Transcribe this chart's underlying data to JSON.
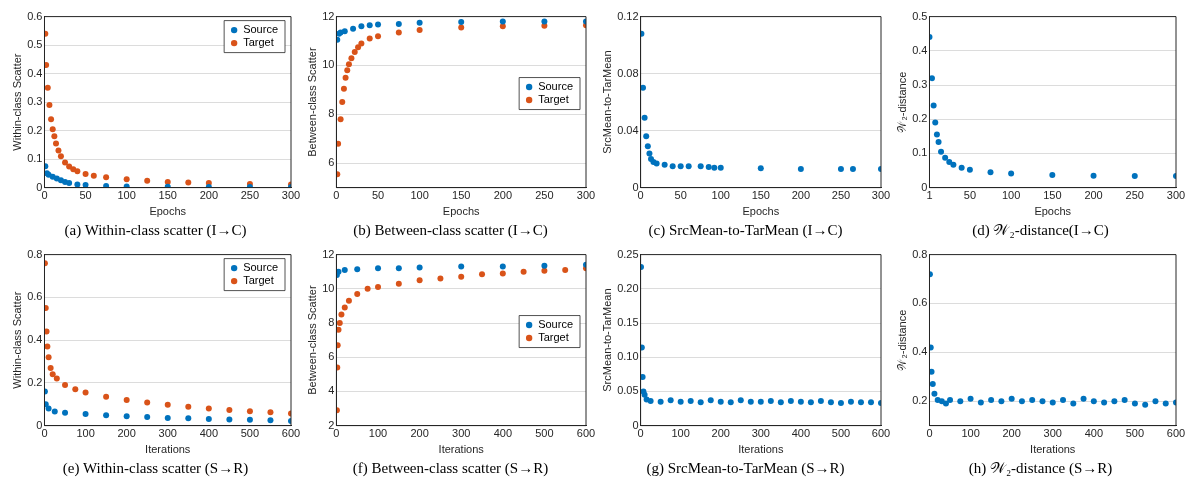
{
  "chart_data": [
    {
      "type": "scatter",
      "xlabel": "Epochs",
      "ylabel": "Within-class Scatter",
      "annotations": [
        "(a) Within-class scatter (I→C)"
      ],
      "xlim": [
        0,
        300
      ],
      "xticks": [
        0,
        50,
        100,
        150,
        200,
        250,
        300
      ],
      "ylim": [
        0,
        0.6
      ],
      "yticks": [
        0,
        0.1,
        0.2,
        0.3,
        0.4,
        0.5,
        0.6
      ],
      "grid": "y",
      "legend": "top right",
      "marker": "circle",
      "series": [
        {
          "name": "Source",
          "color": "#0072bd",
          "x": [
            1,
            3,
            5,
            10,
            15,
            20,
            25,
            30,
            40,
            50,
            75,
            100,
            150,
            200,
            250,
            300
          ],
          "values": [
            0.075,
            0.05,
            0.045,
            0.038,
            0.032,
            0.026,
            0.02,
            0.016,
            0.011,
            0.009,
            0.006,
            0.004,
            0.003,
            0.002,
            0.002,
            0.002
          ]
        },
        {
          "name": "Target",
          "color": "#d95319",
          "x": [
            1,
            2,
            4,
            6,
            8,
            10,
            12,
            14,
            17,
            20,
            25,
            30,
            35,
            40,
            50,
            60,
            75,
            100,
            125,
            150,
            175,
            200,
            250,
            300
          ],
          "values": [
            0.54,
            0.43,
            0.35,
            0.29,
            0.24,
            0.205,
            0.18,
            0.155,
            0.13,
            0.11,
            0.088,
            0.074,
            0.064,
            0.057,
            0.048,
            0.042,
            0.036,
            0.029,
            0.024,
            0.02,
            0.018,
            0.016,
            0.013,
            0.011
          ]
        }
      ]
    },
    {
      "type": "scatter",
      "xlabel": "Epochs",
      "ylabel": "Between-class Scatter",
      "annotations": [
        "(b) Between-class scatter (I→C)"
      ],
      "xlim": [
        0,
        300
      ],
      "xticks": [
        0,
        50,
        100,
        150,
        200,
        250,
        300
      ],
      "ylim": [
        5,
        12
      ],
      "yticks": [
        6,
        8,
        10,
        12
      ],
      "grid": "y",
      "legend": "right",
      "marker": "circle",
      "series": [
        {
          "name": "Source",
          "color": "#0072bd",
          "x": [
            1,
            3,
            5,
            10,
            20,
            30,
            40,
            50,
            75,
            100,
            150,
            200,
            250,
            300
          ],
          "values": [
            11.05,
            11.3,
            11.35,
            11.4,
            11.5,
            11.6,
            11.65,
            11.68,
            11.7,
            11.75,
            11.78,
            11.8,
            11.8,
            11.8
          ]
        },
        {
          "name": "Target",
          "color": "#d95319",
          "x": [
            1,
            2,
            5,
            7,
            9,
            11,
            13,
            15,
            18,
            22,
            26,
            30,
            40,
            50,
            75,
            100,
            150,
            200,
            250,
            300
          ],
          "values": [
            5.55,
            6.8,
            7.8,
            8.5,
            9.05,
            9.5,
            9.8,
            10.05,
            10.3,
            10.55,
            10.75,
            10.9,
            11.1,
            11.2,
            11.35,
            11.45,
            11.55,
            11.6,
            11.63,
            11.65
          ]
        }
      ]
    },
    {
      "type": "scatter",
      "xlabel": "Epochs",
      "ylabel": "SrcMean-to-TarMean",
      "annotations": [
        "(c) SrcMean-to-TarMean (I→C)"
      ],
      "xlim": [
        0,
        300
      ],
      "xticks": [
        0,
        50,
        100,
        150,
        200,
        250,
        300
      ],
      "ylim": [
        0,
        0.12
      ],
      "yticks": [
        0,
        0.04,
        0.08,
        0.12
      ],
      "grid": "y",
      "marker": "circle",
      "series": [
        {
          "color": "#0072bd",
          "x": [
            1,
            3,
            5,
            7,
            9,
            11,
            13,
            16,
            20,
            30,
            40,
            50,
            60,
            75,
            85,
            92,
            100,
            150,
            200,
            250,
            265,
            300
          ],
          "values": [
            0.108,
            0.07,
            0.049,
            0.036,
            0.029,
            0.024,
            0.02,
            0.018,
            0.017,
            0.016,
            0.015,
            0.015,
            0.015,
            0.015,
            0.0145,
            0.014,
            0.014,
            0.0135,
            0.013,
            0.013,
            0.013,
            0.013
          ]
        }
      ]
    },
    {
      "type": "scatter",
      "xlabel": "Epochs",
      "ylabel": "𝒲₂-distance",
      "annotations": [
        "(d) 𝒲₂-distance(I→C)"
      ],
      "xlim": [
        1,
        300
      ],
      "xticks": [
        1,
        50,
        100,
        150,
        200,
        250,
        300
      ],
      "ylim": [
        0,
        0.5
      ],
      "yticks": [
        0,
        0.1,
        0.2,
        0.3,
        0.4,
        0.5
      ],
      "grid": "y",
      "marker": "circle",
      "series": [
        {
          "color": "#0072bd",
          "x": [
            1,
            4,
            6,
            8,
            10,
            12,
            15,
            20,
            25,
            30,
            40,
            50,
            75,
            100,
            150,
            200,
            250,
            300
          ],
          "values": [
            0.44,
            0.32,
            0.24,
            0.19,
            0.155,
            0.133,
            0.105,
            0.087,
            0.075,
            0.067,
            0.058,
            0.052,
            0.045,
            0.041,
            0.037,
            0.035,
            0.034,
            0.034
          ]
        }
      ]
    },
    {
      "type": "scatter",
      "xlabel": "Iterations",
      "ylabel": "Within-class Scatter",
      "annotations": [
        "(e) Within-class scatter (S→R)"
      ],
      "xlim": [
        0,
        600
      ],
      "xticks": [
        0,
        100,
        200,
        300,
        400,
        500,
        600
      ],
      "ylim": [
        0,
        0.8
      ],
      "yticks": [
        0,
        0.2,
        0.4,
        0.6,
        0.8
      ],
      "grid": "y",
      "legend": "top right",
      "marker": "circle",
      "series": [
        {
          "name": "Source",
          "color": "#0072bd",
          "x": [
            1,
            3,
            10,
            25,
            50,
            100,
            150,
            200,
            250,
            300,
            350,
            400,
            450,
            500,
            550,
            600
          ],
          "values": [
            0.16,
            0.1,
            0.08,
            0.066,
            0.06,
            0.054,
            0.048,
            0.044,
            0.04,
            0.036,
            0.034,
            0.031,
            0.029,
            0.027,
            0.025,
            0.022
          ]
        },
        {
          "name": "Target",
          "color": "#d95319",
          "x": [
            1,
            3,
            5,
            7,
            10,
            15,
            20,
            30,
            50,
            75,
            100,
            150,
            200,
            250,
            300,
            350,
            400,
            450,
            500,
            550,
            600
          ],
          "values": [
            0.76,
            0.55,
            0.44,
            0.37,
            0.32,
            0.27,
            0.24,
            0.22,
            0.19,
            0.17,
            0.155,
            0.135,
            0.12,
            0.108,
            0.097,
            0.088,
            0.08,
            0.073,
            0.067,
            0.062,
            0.057
          ]
        }
      ]
    },
    {
      "type": "scatter",
      "xlabel": "Iterations",
      "ylabel": "Between-class Scatter",
      "annotations": [
        "(f) Between-class scatter (S→R)"
      ],
      "xlim": [
        0,
        600
      ],
      "xticks": [
        0,
        100,
        200,
        300,
        400,
        500,
        600
      ],
      "ylim": [
        2,
        12
      ],
      "yticks": [
        2,
        4,
        6,
        8,
        10,
        12
      ],
      "grid": "y",
      "legend": "right",
      "marker": "circle",
      "series": [
        {
          "name": "Source",
          "color": "#0072bd",
          "x": [
            1,
            5,
            20,
            50,
            100,
            150,
            200,
            300,
            400,
            500,
            600
          ],
          "values": [
            10.8,
            11.0,
            11.1,
            11.15,
            11.2,
            11.2,
            11.25,
            11.3,
            11.3,
            11.35,
            11.4
          ]
        },
        {
          "name": "Target",
          "color": "#d95319",
          "x": [
            1,
            2,
            3,
            5,
            8,
            12,
            20,
            30,
            50,
            75,
            100,
            150,
            200,
            250,
            300,
            350,
            400,
            450,
            500,
            550,
            600
          ],
          "values": [
            2.9,
            5.4,
            6.7,
            7.6,
            8.0,
            8.5,
            8.9,
            9.3,
            9.7,
            10.0,
            10.1,
            10.3,
            10.5,
            10.6,
            10.7,
            10.85,
            10.9,
            11.0,
            11.05,
            11.1,
            11.2
          ]
        }
      ]
    },
    {
      "type": "scatter",
      "xlabel": "Iterations",
      "ylabel": "SrcMean-to-TarMean",
      "annotations": [
        "(g) SrcMean-to-TarMean (S→R)"
      ],
      "xlim": [
        0,
        600
      ],
      "xticks": [
        0,
        100,
        200,
        300,
        400,
        500,
        600
      ],
      "ylim": [
        0,
        0.25
      ],
      "yticks": [
        0,
        {
          "value": 0.05,
          "label": "0.05"
        },
        {
          "value": 0.1,
          "label": "0.10"
        },
        {
          "value": 0.15,
          "label": "0.15"
        },
        {
          "value": 0.2,
          "label": "0.20"
        },
        {
          "value": 0.25,
          "label": "0.25"
        }
      ],
      "grid": "y",
      "marker": "circle",
      "series": [
        {
          "color": "#0072bd",
          "x": [
            1,
            3,
            5,
            7,
            10,
            15,
            25,
            50,
            75,
            100,
            125,
            150,
            175,
            200,
            225,
            250,
            275,
            300,
            325,
            350,
            375,
            400,
            425,
            450,
            475,
            500,
            525,
            550,
            575,
            600
          ],
          "values": [
            0.232,
            0.114,
            0.071,
            0.05,
            0.045,
            0.038,
            0.036,
            0.035,
            0.037,
            0.035,
            0.036,
            0.034,
            0.037,
            0.035,
            0.034,
            0.037,
            0.035,
            0.035,
            0.036,
            0.034,
            0.036,
            0.035,
            0.034,
            0.036,
            0.034,
            0.033,
            0.035,
            0.034,
            0.034,
            0.033
          ]
        }
      ]
    },
    {
      "type": "scatter",
      "xlabel": "Iterations",
      "ylabel": "𝒲₂-distance",
      "annotations": [
        "(h) 𝒲₂-distance (S→R)"
      ],
      "xlim": [
        0,
        600
      ],
      "xticks": [
        0,
        100,
        200,
        300,
        400,
        500,
        600
      ],
      "ylim": [
        0.1,
        0.8
      ],
      "yticks": [
        0.2,
        0.4,
        0.6,
        0.8
      ],
      "grid": "y",
      "marker": "circle",
      "series": [
        {
          "color": "#0072bd",
          "x": [
            1,
            3,
            5,
            8,
            12,
            20,
            30,
            40,
            50,
            75,
            100,
            125,
            150,
            175,
            200,
            225,
            250,
            275,
            300,
            325,
            350,
            375,
            400,
            425,
            450,
            475,
            500,
            525,
            550,
            575,
            600
          ],
          "values": [
            0.72,
            0.42,
            0.32,
            0.27,
            0.23,
            0.205,
            0.2,
            0.19,
            0.205,
            0.2,
            0.21,
            0.195,
            0.205,
            0.2,
            0.21,
            0.2,
            0.205,
            0.2,
            0.195,
            0.205,
            0.19,
            0.21,
            0.2,
            0.195,
            0.2,
            0.205,
            0.19,
            0.185,
            0.2,
            0.19,
            0.195
          ]
        }
      ]
    }
  ]
}
